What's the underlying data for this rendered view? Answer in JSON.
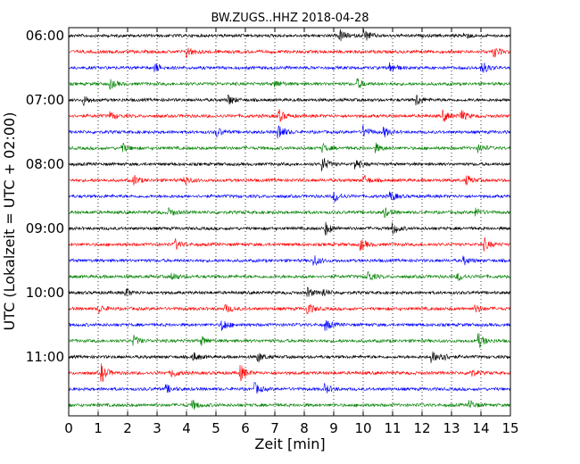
{
  "chart_data": {
    "type": "line",
    "title": "BW.ZUGS..HHZ 2018-04-28",
    "xlabel": "Zeit  [min]",
    "ylabel": "UTC (Lokalzeit = UTC + 02:00)",
    "xlim": [
      0,
      15
    ],
    "x_ticks": [
      "0",
      "1",
      "2",
      "3",
      "4",
      "5",
      "6",
      "7",
      "8",
      "9",
      "10",
      "11",
      "12",
      "13",
      "14",
      "15"
    ],
    "y_ticks": [
      "06:00",
      "07:00",
      "08:00",
      "09:00",
      "10:00",
      "11:00"
    ],
    "grid": true,
    "line_colors": [
      "#000000",
      "#ff0000",
      "#0000ff",
      "#008000"
    ],
    "trace_interval_minutes": 15,
    "traces": [
      {
        "start": "06:00",
        "events": [
          [
            9.2,
            1.0
          ],
          [
            10.0,
            1.2
          ],
          [
            13.4,
            0.6
          ]
        ]
      },
      {
        "start": "06:15",
        "events": [
          [
            4.0,
            1.0
          ],
          [
            14.4,
            1.1
          ]
        ]
      },
      {
        "start": "06:30",
        "events": [
          [
            2.9,
            0.8
          ],
          [
            10.9,
            1.0
          ],
          [
            14.0,
            1.3
          ]
        ]
      },
      {
        "start": "06:45",
        "events": [
          [
            1.4,
            0.8
          ],
          [
            7.0,
            0.6
          ],
          [
            9.8,
            0.8
          ]
        ]
      },
      {
        "start": "07:00",
        "events": [
          [
            0.5,
            0.8
          ],
          [
            5.4,
            1.0
          ],
          [
            11.8,
            1.0
          ]
        ]
      },
      {
        "start": "07:15",
        "events": [
          [
            1.4,
            0.7
          ],
          [
            7.1,
            1.2
          ],
          [
            12.7,
            1.0
          ],
          [
            13.3,
            1.0
          ]
        ]
      },
      {
        "start": "07:30",
        "events": [
          [
            5.0,
            0.8
          ],
          [
            7.1,
            1.5
          ],
          [
            10.0,
            1.0
          ],
          [
            10.7,
            0.8
          ]
        ]
      },
      {
        "start": "07:45",
        "events": [
          [
            1.8,
            0.8
          ],
          [
            8.6,
            0.7
          ],
          [
            10.4,
            0.8
          ],
          [
            13.9,
            0.7
          ]
        ]
      },
      {
        "start": "08:00",
        "events": [
          [
            8.6,
            1.3
          ],
          [
            9.7,
            1.0
          ]
        ]
      },
      {
        "start": "08:15",
        "events": [
          [
            2.2,
            0.8
          ],
          [
            3.9,
            0.9
          ],
          [
            10.0,
            0.8
          ],
          [
            13.5,
            0.8
          ]
        ]
      },
      {
        "start": "08:30",
        "events": [
          [
            9.0,
            1.0
          ],
          [
            10.9,
            0.9
          ]
        ]
      },
      {
        "start": "08:45",
        "events": [
          [
            3.4,
            0.7
          ],
          [
            10.7,
            0.8
          ],
          [
            13.8,
            0.7
          ]
        ]
      },
      {
        "start": "09:00",
        "events": [
          [
            8.7,
            1.2
          ],
          [
            11.0,
            1.0
          ]
        ]
      },
      {
        "start": "09:15",
        "events": [
          [
            3.6,
            0.9
          ],
          [
            9.9,
            1.0
          ],
          [
            14.1,
            1.0
          ]
        ]
      },
      {
        "start": "09:30",
        "events": [
          [
            8.3,
            1.0
          ],
          [
            13.4,
            0.7
          ]
        ]
      },
      {
        "start": "09:45",
        "events": [
          [
            3.5,
            0.7
          ],
          [
            10.1,
            1.2
          ],
          [
            13.2,
            0.7
          ]
        ]
      },
      {
        "start": "10:00",
        "events": [
          [
            1.9,
            0.8
          ],
          [
            8.1,
            0.8
          ],
          [
            8.6,
            0.8
          ]
        ]
      },
      {
        "start": "10:15",
        "events": [
          [
            1.0,
            0.7
          ],
          [
            5.3,
            0.7
          ],
          [
            8.1,
            1.1
          ],
          [
            13.8,
            0.7
          ]
        ]
      },
      {
        "start": "10:30",
        "events": [
          [
            5.2,
            1.1
          ],
          [
            8.7,
            1.0
          ]
        ]
      },
      {
        "start": "10:45",
        "events": [
          [
            2.2,
            0.8
          ],
          [
            4.5,
            0.7
          ],
          [
            13.9,
            1.3
          ]
        ]
      },
      {
        "start": "11:00",
        "events": [
          [
            4.2,
            0.8
          ],
          [
            6.4,
            0.9
          ],
          [
            12.3,
            1.0
          ],
          [
            12.6,
            1.0
          ]
        ]
      },
      {
        "start": "11:15",
        "events": [
          [
            1.1,
            1.6
          ],
          [
            3.5,
            0.8
          ],
          [
            5.8,
            1.5
          ],
          [
            13.6,
            0.8
          ]
        ]
      },
      {
        "start": "11:30",
        "events": [
          [
            3.3,
            0.7
          ],
          [
            6.3,
            1.0
          ],
          [
            8.7,
            0.8
          ]
        ]
      },
      {
        "start": "11:45",
        "events": [
          [
            4.2,
            0.8
          ],
          [
            13.6,
            0.8
          ]
        ]
      }
    ]
  }
}
